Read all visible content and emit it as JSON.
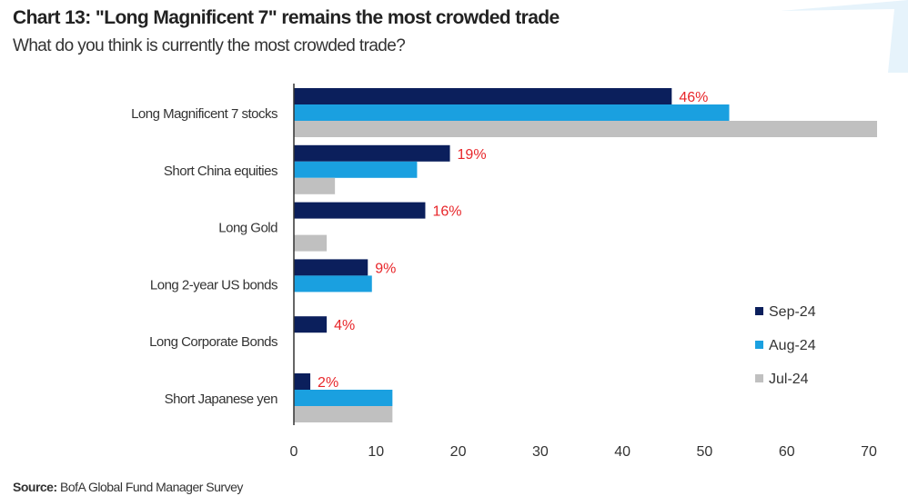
{
  "chart_data": {
    "type": "bar",
    "orientation": "horizontal",
    "title": "Chart 13: \"Long Magnificent 7\" remains the most crowded trade",
    "subtitle": "What do you think is currently the most crowded trade?",
    "categories": [
      "Long Magnificent 7 stocks",
      "Short China equities",
      "Long Gold",
      "Long 2-year US bonds",
      "Long Corporate Bonds",
      "Short Japanese yen"
    ],
    "series": [
      {
        "name": "Sep-24",
        "color": "#0b1f5c",
        "values": [
          46,
          19,
          16,
          9,
          4,
          2
        ]
      },
      {
        "name": "Aug-24",
        "color": "#1aa0e0",
        "values": [
          53,
          15,
          null,
          9.5,
          null,
          12
        ]
      },
      {
        "name": "Jul-24",
        "color": "#c0c0c0",
        "values": [
          71,
          5,
          4,
          null,
          null,
          12
        ]
      }
    ],
    "data_labels": [
      "46%",
      "19%",
      "16%",
      "9%",
      "4%",
      "2%"
    ],
    "data_label_color": "#e8262a",
    "xlim": [
      0,
      70
    ],
    "xticks": [
      "0",
      "10",
      "20",
      "30",
      "40",
      "50",
      "60",
      "70"
    ],
    "grid": false,
    "legend_position": "right"
  },
  "source_label": "Source:",
  "source_text": "BofA Global Fund Manager Survey"
}
